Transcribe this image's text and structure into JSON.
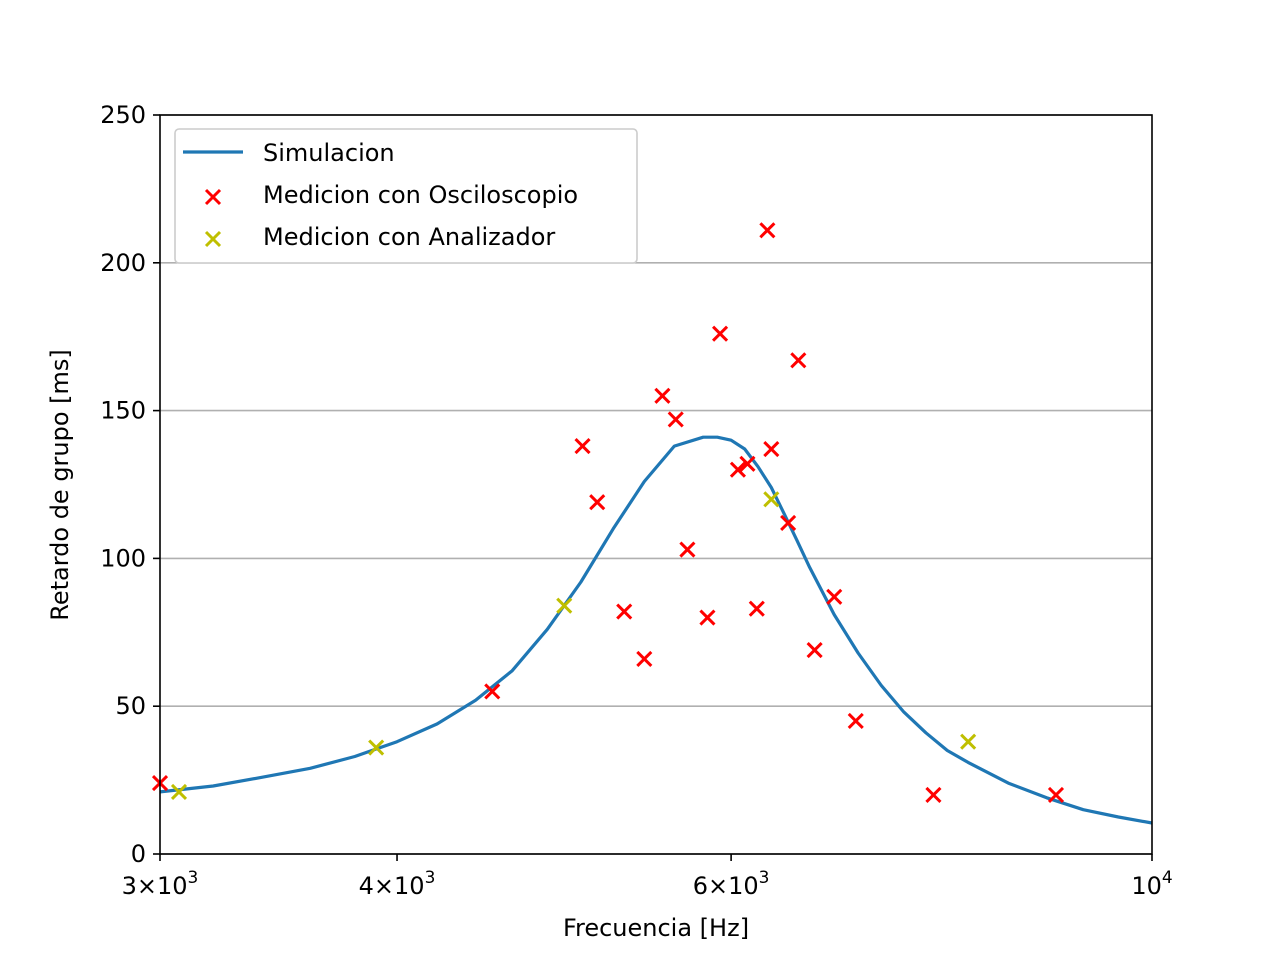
{
  "chart_data": {
    "type": "scatter",
    "title": "",
    "xlabel": "Frecuencia [Hz]",
    "ylabel": "Retardo de grupo [ms]",
    "xscale": "log",
    "xlim": [
      3000,
      10000
    ],
    "ylim": [
      0,
      250
    ],
    "grid": "y-major",
    "legend_position": "upper-left",
    "x_ticks": [
      {
        "value": 3000,
        "mantissa": "3",
        "exp": "3"
      },
      {
        "value": 4000,
        "mantissa": "4",
        "exp": "3"
      },
      {
        "value": 6000,
        "mantissa": "6",
        "exp": "3"
      },
      {
        "value": 10000,
        "mantissa": "",
        "exp": "4"
      }
    ],
    "y_ticks": [
      0,
      50,
      100,
      150,
      200,
      250
    ],
    "series": [
      {
        "name": "Simulacion",
        "kind": "line",
        "color": "#1f77b4",
        "x": [
          3000,
          3200,
          3400,
          3600,
          3800,
          4000,
          4200,
          4400,
          4600,
          4800,
          5000,
          5200,
          5400,
          5600,
          5800,
          5900,
          6000,
          6100,
          6200,
          6300,
          6400,
          6500,
          6600,
          6800,
          7000,
          7200,
          7400,
          7600,
          7800,
          8000,
          8400,
          8800,
          9200,
          9600,
          10000
        ],
        "y": [
          21,
          23,
          26,
          29,
          33,
          38,
          44,
          52,
          62,
          76,
          92,
          110,
          126,
          138,
          141,
          141,
          140,
          137,
          131,
          124,
          115,
          106,
          97,
          81,
          68,
          57,
          48,
          41,
          35,
          31,
          24,
          19,
          15,
          12.5,
          10.5
        ]
      },
      {
        "name": "Medicion con Osciloscopio",
        "kind": "scatter",
        "marker": "x",
        "color": "#ff0000",
        "x": [
          3000,
          4490,
          5010,
          5100,
          5270,
          5400,
          5520,
          5610,
          5690,
          5830,
          5920,
          6050,
          6120,
          6190,
          6270,
          6300,
          6430,
          6510,
          6640,
          6800,
          6980,
          7670,
          8900
        ],
        "y": [
          24,
          55,
          138,
          119,
          82,
          66,
          155,
          147,
          103,
          80,
          176,
          130,
          132,
          83,
          211,
          137,
          112,
          167,
          69,
          87,
          45,
          20,
          20
        ]
      },
      {
        "name": "Medicion con Analizador",
        "kind": "scatter",
        "marker": "x",
        "color": "#bfbf00",
        "x": [
          3070,
          3900,
          4900,
          6300,
          8000
        ],
        "y": [
          21,
          36,
          84,
          120,
          38
        ]
      }
    ]
  }
}
